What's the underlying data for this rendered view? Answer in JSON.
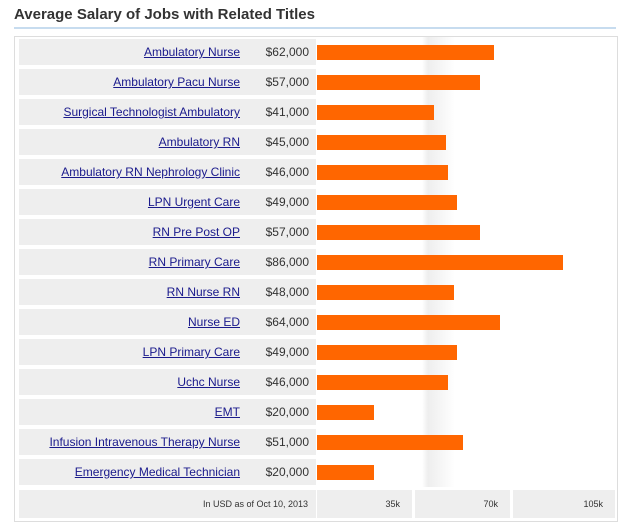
{
  "title": "Average Salary of Jobs with Related Titles",
  "footer_note": "In USD as of Oct 10, 2013",
  "colors": {
    "bar": "#ff6600",
    "link": "#1a1a8c",
    "row_bg": "#eeeeee"
  },
  "chart_data": {
    "type": "bar",
    "orientation": "horizontal",
    "title": "Average Salary of Jobs with Related Titles",
    "xlim": [
      0,
      105000
    ],
    "x_ticks": [
      "35k",
      "70k",
      "105k"
    ],
    "categories": [
      "Ambulatory Nurse",
      "Ambulatory Pacu Nurse",
      "Surgical Technologist Ambulatory",
      "Ambulatory RN",
      "Ambulatory RN Nephrology Clinic",
      "LPN Urgent Care",
      "RN Pre Post OP",
      "RN Primary Care",
      "RN Nurse RN",
      "Nurse ED",
      "LPN Primary Care",
      "Uchc Nurse",
      "EMT",
      "Infusion Intravenous Therapy Nurse",
      "Emergency Medical Technician"
    ],
    "value_labels": [
      "$62,000",
      "$57,000",
      "$41,000",
      "$45,000",
      "$46,000",
      "$49,000",
      "$57,000",
      "$86,000",
      "$48,000",
      "$64,000",
      "$49,000",
      "$46,000",
      "$20,000",
      "$51,000",
      "$20,000"
    ],
    "values": [
      62000,
      57000,
      41000,
      45000,
      46000,
      49000,
      57000,
      86000,
      48000,
      64000,
      49000,
      46000,
      20000,
      51000,
      20000
    ]
  }
}
